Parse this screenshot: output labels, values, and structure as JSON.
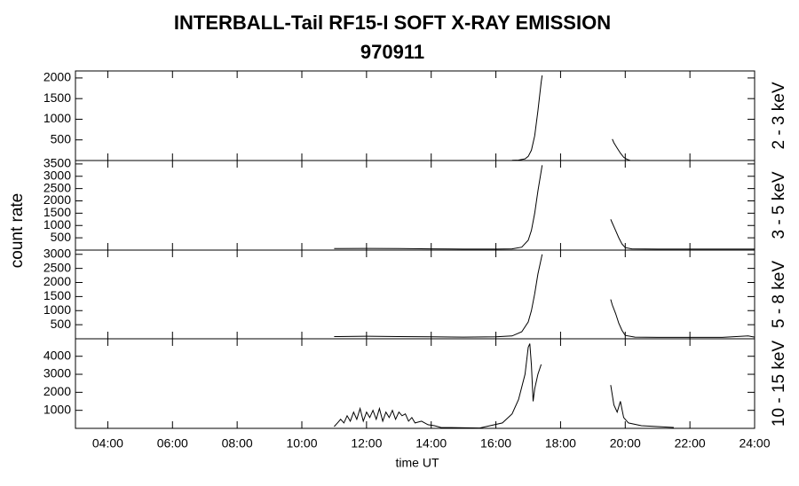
{
  "chart_data": [
    {
      "type": "line",
      "title": "INTERBALL-Tail RF15-I SOFT X-RAY EMISSION",
      "subtitle": "970911",
      "y2label": "2 - 3 keV",
      "color": "#000000",
      "xlim": [
        3,
        24
      ],
      "ylim": [
        0,
        2170
      ],
      "yticks": [
        500,
        1000,
        1500,
        2000
      ],
      "x": [
        16.5,
        16.7,
        16.9,
        17.0,
        17.1,
        17.2,
        17.3,
        17.4,
        17.43,
        18.5,
        19.6,
        19.65,
        19.75,
        19.85,
        19.95,
        20.05,
        20.15
      ],
      "values": [
        5,
        10,
        40,
        100,
        250,
        600,
        1200,
        1900,
        2060,
        null,
        520,
        430,
        300,
        180,
        80,
        30,
        5
      ]
    },
    {
      "type": "line",
      "ylabel": "count rate",
      "y2label": "3 - 5 keV",
      "color": "#000000",
      "xlim": [
        3,
        24
      ],
      "ylim": [
        0,
        3640
      ],
      "yticks": [
        500,
        1000,
        1500,
        2000,
        2500,
        3000,
        3500
      ],
      "x": [
        11.0,
        12,
        13,
        14,
        15,
        16,
        16.5,
        16.8,
        17.0,
        17.1,
        17.2,
        17.3,
        17.43,
        18.5,
        19.55,
        19.6,
        19.7,
        19.8,
        19.9,
        20.0,
        20.2,
        21,
        22,
        23,
        24
      ],
      "values": [
        60,
        70,
        60,
        50,
        40,
        40,
        50,
        120,
        400,
        800,
        1500,
        2400,
        3450,
        null,
        1250,
        1100,
        800,
        500,
        250,
        100,
        50,
        40,
        40,
        40,
        40
      ]
    },
    {
      "type": "line",
      "y2label": "5 - 8 keV",
      "color": "#000000",
      "xlim": [
        3,
        24
      ],
      "ylim": [
        0,
        3150
      ],
      "yticks": [
        500,
        1000,
        1500,
        2000,
        2500,
        3000
      ],
      "x": [
        11.0,
        12,
        13,
        14,
        15,
        16,
        16.5,
        16.8,
        17.0,
        17.1,
        17.2,
        17.3,
        17.43,
        18.5,
        19.55,
        19.6,
        19.7,
        19.8,
        19.9,
        20.0,
        20.3,
        21,
        22,
        23,
        23.8,
        24
      ],
      "values": [
        80,
        90,
        80,
        70,
        60,
        70,
        100,
        250,
        600,
        1000,
        1600,
        2300,
        3000,
        null,
        1400,
        1200,
        900,
        550,
        300,
        120,
        60,
        50,
        50,
        50,
        100,
        60
      ]
    },
    {
      "type": "line",
      "y2label": "10 - 15 keV",
      "xlabel": "time UT",
      "color": "#000000",
      "xlim": [
        3,
        24
      ],
      "ylim": [
        0,
        4970
      ],
      "yticks": [
        1000,
        2000,
        3000,
        4000
      ],
      "xticks": [
        {
          "value": 4,
          "label": "04:00"
        },
        {
          "value": 6,
          "label": "06:00"
        },
        {
          "value": 8,
          "label": "08:00"
        },
        {
          "value": 10,
          "label": "10:00"
        },
        {
          "value": 12,
          "label": "12:00"
        },
        {
          "value": 14,
          "label": "14:00"
        },
        {
          "value": 16,
          "label": "16:00"
        },
        {
          "value": 18,
          "label": "18:00"
        },
        {
          "value": 20,
          "label": "20:00"
        },
        {
          "value": 22,
          "label": "22:00"
        },
        {
          "value": 24,
          "label": "24:00"
        }
      ],
      "x": [
        11.0,
        11.1,
        11.2,
        11.3,
        11.4,
        11.5,
        11.6,
        11.7,
        11.8,
        11.9,
        12.0,
        12.1,
        12.2,
        12.3,
        12.4,
        12.5,
        12.6,
        12.7,
        12.8,
        12.9,
        13.0,
        13.1,
        13.2,
        13.3,
        13.4,
        13.5,
        13.7,
        13.9,
        14.1,
        14.3,
        15.5,
        16.2,
        16.5,
        16.7,
        16.9,
        17.0,
        17.05,
        17.1,
        17.15,
        17.2,
        17.3,
        17.4,
        18.5,
        19.55,
        19.65,
        19.75,
        19.85,
        19.95,
        20.1,
        20.5,
        21,
        21.5
      ],
      "values": [
        100,
        300,
        500,
        300,
        700,
        400,
        900,
        500,
        1100,
        400,
        900,
        600,
        1000,
        500,
        1100,
        400,
        900,
        600,
        1000,
        500,
        900,
        700,
        800,
        400,
        600,
        300,
        400,
        200,
        150,
        50,
        20,
        300,
        800,
        1600,
        3000,
        4500,
        4700,
        3500,
        1500,
        2200,
        3000,
        3550,
        null,
        2400,
        1300,
        900,
        1500,
        600,
        300,
        150,
        100,
        50
      ]
    }
  ]
}
